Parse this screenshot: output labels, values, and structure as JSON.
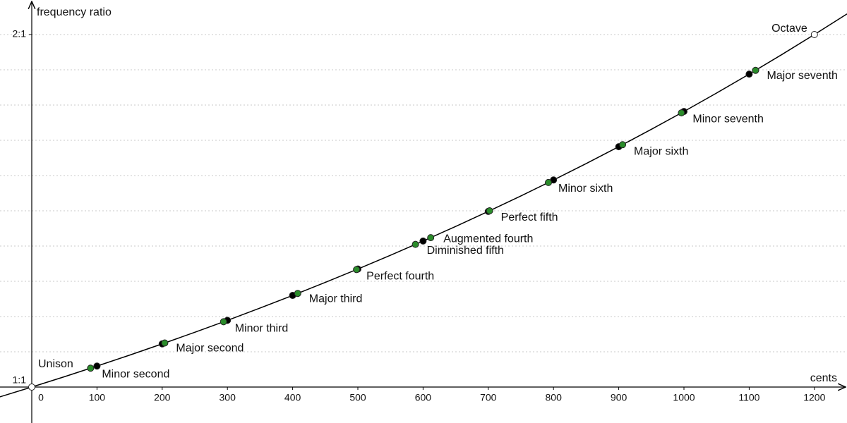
{
  "chart_data": {
    "type": "scatter",
    "x_label": "cents",
    "y_label": "frequency ratio",
    "xlim": [
      -48.7,
      1250
    ],
    "ylim": [
      0.898,
      2.098
    ],
    "xticks": [
      0,
      100,
      200,
      300,
      400,
      500,
      600,
      700,
      800,
      900,
      1000,
      1100,
      1200
    ],
    "yticks": [
      {
        "value": 1,
        "label": "1:1"
      },
      {
        "value": 2,
        "label": "2:1"
      }
    ],
    "ygrid": [
      1.1,
      1.2,
      1.3,
      1.4,
      1.5,
      1.6,
      1.7,
      1.8,
      1.9
    ],
    "curve": {
      "color": "#000000",
      "x": [
        -50,
        0,
        50,
        100,
        150,
        200,
        250,
        300,
        350,
        400,
        450,
        500,
        550,
        600,
        650,
        700,
        750,
        800,
        850,
        900,
        950,
        1000,
        1050,
        1100,
        1150,
        1200,
        1250
      ],
      "values": [
        0.9715,
        1,
        1.0293,
        1.0595,
        1.0905,
        1.1225,
        1.1554,
        1.1892,
        1.2241,
        1.2599,
        1.2968,
        1.3348,
        1.3739,
        1.4142,
        1.4557,
        1.4983,
        1.5422,
        1.5874,
        1.6339,
        1.6818,
        1.7311,
        1.7818,
        1.834,
        1.8877,
        1.9431,
        2,
        2.0586
      ]
    },
    "series": [
      {
        "color": "#000000",
        "x": [
          100,
          200,
          300,
          400,
          500,
          600,
          700,
          800,
          900,
          1000,
          1100
        ],
        "values": [
          1.0595,
          1.1225,
          1.1892,
          1.2599,
          1.3348,
          1.4142,
          1.4983,
          1.5874,
          1.6818,
          1.7818,
          1.8877
        ]
      },
      {
        "color": "#2a8c2a",
        "x": [
          90.2,
          203.9,
          294.1,
          407.8,
          498,
          588.3,
          611.7,
          702,
          792.2,
          905.9,
          996.1,
          1109.8
        ],
        "values": [
          1.0535,
          1.125,
          1.1852,
          1.2656,
          1.3333,
          1.4047,
          1.4238,
          1.5,
          1.5802,
          1.6875,
          1.7778,
          1.8984
        ],
        "labels": [
          "Minor second",
          "Major second",
          "Minor third",
          "Major third",
          "Perfect fourth",
          "Diminished fifth",
          "Augmented fourth",
          "Perfect fifth",
          "Minor sixth",
          "Major sixth",
          "Minor seventh",
          "Major seventh"
        ]
      },
      {
        "color": "#ffffff",
        "x": [
          0,
          1200
        ],
        "values": [
          1,
          2
        ],
        "labels": [
          "Unison",
          "Octave"
        ]
      }
    ]
  }
}
